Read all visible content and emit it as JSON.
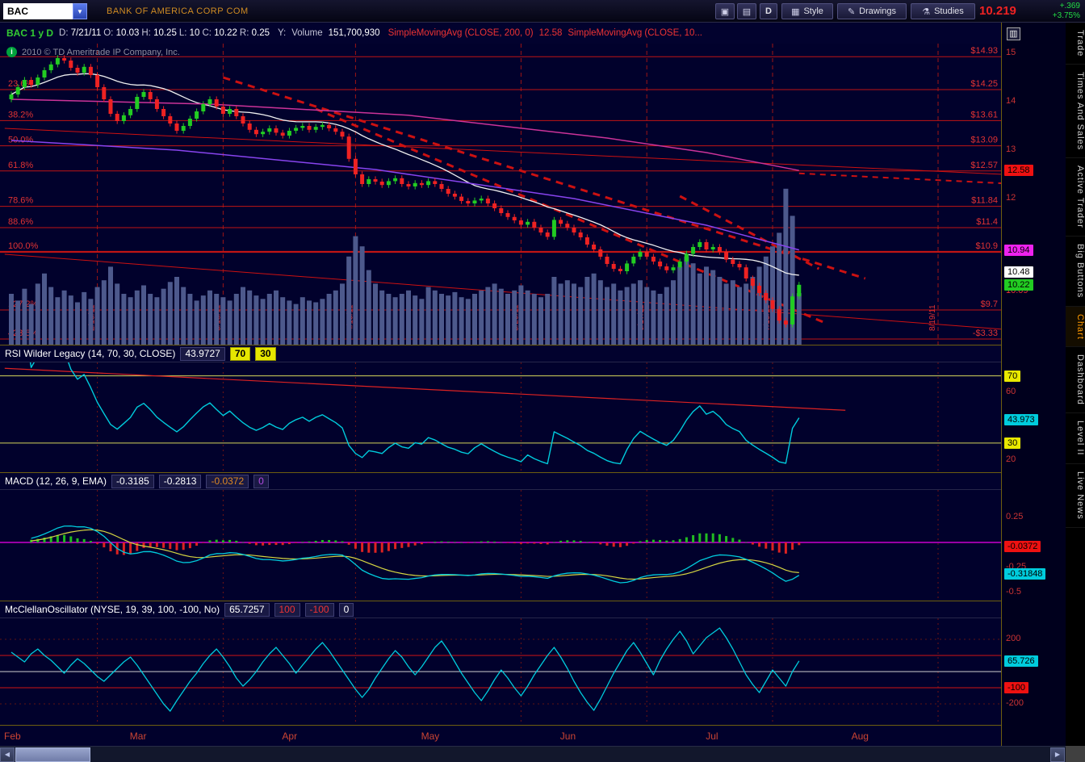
{
  "topbar": {
    "symbol": "BAC",
    "company": "BANK OF AMERICA CORP COM",
    "period_button": "D",
    "style_label": "Style",
    "drawings_label": "Drawings",
    "studies_label": "Studies",
    "last_price": "10.219",
    "change": "+.369",
    "change_pct": "+3.75%"
  },
  "icons": {
    "dropdown": "▼",
    "camera": "▣",
    "grid": "▤",
    "style": "▦",
    "drawings": "✎",
    "studies": "⚗",
    "panel": "▥",
    "info": "i",
    "scroll_left": "◀",
    "scroll_right": "▶"
  },
  "infobar": {
    "symbol_period": "BAC 1 y D",
    "fields": [
      {
        "label": "D:",
        "value": "7/21/11"
      },
      {
        "label": "O:",
        "value": "10.03"
      },
      {
        "label": "H:",
        "value": "10.25"
      },
      {
        "label": "L:",
        "value": "10"
      },
      {
        "label": "C:",
        "value": "10.22"
      },
      {
        "label": "R:",
        "value": "0.25"
      }
    ],
    "y_label": "Y:",
    "volume_label": "Volume",
    "volume_value": "151,700,930",
    "sma200_label": "SimpleMovingAvg (CLOSE, 200, 0)",
    "sma200_value": "12.58",
    "sma2_label": "SimpleMovingAvg (CLOSE, 10..."
  },
  "watermark": "2010 © TD Ameritrade IP Company, Inc.",
  "sidebar": {
    "tabs": [
      {
        "label": "Trade",
        "active": false
      },
      {
        "label": "Times And Sales",
        "active": false
      },
      {
        "label": "Active Trader",
        "active": false
      },
      {
        "label": "Big Buttons",
        "active": false
      },
      {
        "label": "Chart",
        "active": true
      },
      {
        "label": "Dashboard",
        "active": false
      },
      {
        "label": "Level II",
        "active": false
      },
      {
        "label": "Live News",
        "active": false
      }
    ]
  },
  "time_axis": {
    "months": [
      {
        "label": "Feb",
        "i": 0
      },
      {
        "label": "Mar",
        "i": 19
      },
      {
        "label": "Apr",
        "i": 42
      },
      {
        "label": "May",
        "i": 63
      },
      {
        "label": "Jun",
        "i": 84
      },
      {
        "label": "Jul",
        "i": 106
      },
      {
        "label": "Aug",
        "i": 128
      }
    ]
  },
  "chart_data": [
    {
      "type": "candlestick",
      "name": "price",
      "symbol": "BAC",
      "timeframe": "1 y D",
      "ylim": [
        8.98,
        15.2
      ],
      "last_bar": {
        "date": "7/21/11",
        "open": 10.03,
        "high": 10.25,
        "low": 10,
        "close": 10.22,
        "range": 0.25,
        "volume": "151,700,930"
      },
      "closes": [
        14.15,
        14.3,
        14.45,
        14.35,
        14.5,
        14.65,
        14.77,
        14.9,
        14.85,
        14.7,
        14.6,
        14.72,
        14.55,
        14.3,
        14.05,
        13.75,
        13.6,
        13.72,
        13.85,
        14.1,
        14.2,
        14.05,
        13.85,
        13.7,
        13.55,
        13.4,
        13.5,
        13.65,
        13.8,
        13.95,
        14.05,
        13.9,
        13.75,
        13.85,
        13.7,
        13.55,
        13.42,
        13.33,
        13.38,
        13.45,
        13.36,
        13.3,
        13.4,
        13.46,
        13.5,
        13.42,
        13.48,
        13.52,
        13.45,
        13.38,
        13.28,
        12.82,
        12.5,
        12.3,
        12.4,
        12.35,
        12.28,
        12.36,
        12.42,
        12.3,
        12.25,
        12.32,
        12.28,
        12.36,
        12.3,
        12.2,
        12.1,
        12.04,
        11.95,
        11.9,
        11.96,
        12.0,
        11.9,
        11.8,
        11.7,
        11.62,
        11.55,
        11.46,
        11.52,
        11.4,
        11.3,
        11.21,
        11.56,
        11.48,
        11.4,
        11.3,
        11.2,
        11.05,
        10.95,
        10.8,
        10.65,
        10.55,
        10.5,
        10.66,
        10.8,
        10.9,
        10.8,
        10.7,
        10.6,
        10.52,
        10.58,
        10.7,
        10.86,
        11.0,
        11.1,
        10.95,
        11.0,
        10.9,
        10.74,
        10.65,
        10.58,
        10.35,
        10.2,
        10.05,
        9.9,
        9.72,
        9.48,
        9.4,
        9.98,
        10.22
      ],
      "volumes_millions": [
        150,
        130,
        165,
        120,
        180,
        210,
        170,
        140,
        160,
        145,
        125,
        155,
        135,
        170,
        190,
        230,
        180,
        150,
        140,
        160,
        175,
        150,
        140,
        165,
        185,
        200,
        170,
        150,
        130,
        145,
        160,
        150,
        140,
        130,
        150,
        170,
        160,
        145,
        135,
        150,
        160,
        140,
        130,
        120,
        140,
        130,
        125,
        135,
        150,
        160,
        180,
        260,
        320,
        290,
        220,
        180,
        160,
        150,
        140,
        150,
        160,
        145,
        135,
        170,
        160,
        150,
        145,
        155,
        140,
        135,
        150,
        160,
        170,
        180,
        165,
        150,
        160,
        175,
        160,
        150,
        140,
        150,
        200,
        180,
        190,
        180,
        170,
        200,
        210,
        190,
        170,
        180,
        160,
        170,
        180,
        190,
        170,
        160,
        150,
        170,
        190,
        230,
        260,
        240,
        210,
        230,
        220,
        200,
        180,
        190,
        170,
        180,
        200,
        230,
        260,
        290,
        330,
        460,
        380,
        152
      ],
      "overlays": {
        "sma_white_period": 20,
        "sma200": {
          "color": "#cc3399",
          "last_value": 12.58,
          "points": [
            [
              0,
              14.05
            ],
            [
              30,
              13.95
            ],
            [
              60,
              13.72
            ],
            [
              90,
              13.25
            ],
            [
              105,
              12.95
            ],
            [
              119,
              12.58
            ]
          ]
        },
        "violet_ma": {
          "color": "#8844ee",
          "points": [
            [
              0,
              13.2
            ],
            [
              25,
              13.0
            ],
            [
              55,
              12.6
            ],
            [
              85,
              12.0
            ],
            [
              105,
              11.45
            ],
            [
              119,
              10.94
            ]
          ]
        }
      },
      "fib_levels": [
        {
          "pct": "",
          "price": 14.93,
          "label": "$14.93"
        },
        {
          "pct": "23.6%",
          "price": 14.25,
          "label": "$14.25"
        },
        {
          "pct": "38.2%",
          "price": 13.61,
          "label": "$13.61"
        },
        {
          "pct": "50.0%",
          "price": 13.09,
          "label": "$13.09"
        },
        {
          "pct": "61.8%",
          "price": 12.57,
          "label": "$12.57"
        },
        {
          "pct": "78.6%",
          "price": 11.84,
          "label": "$11.84"
        },
        {
          "pct": "88.6%",
          "price": 11.4,
          "label": "$11.4"
        },
        {
          "pct": "100.0%",
          "price": 10.9,
          "label": "$10.9",
          "bold": true
        },
        {
          "pct": "127.2%",
          "price": 9.7,
          "label": "$9.7"
        },
        {
          "pct": "423.6%",
          "price": null,
          "label": "-$3.33",
          "pinned_bottom": true
        }
      ],
      "trendlines": [
        {
          "i1": -1,
          "p1": 13.45,
          "i2": 150,
          "p2": 12.5,
          "width": 1,
          "dash": null
        },
        {
          "i1": -1,
          "p1": 10.85,
          "i2": 150,
          "p2": 9.3,
          "width": 1,
          "dash": null
        },
        {
          "i1": 32,
          "p1": 14.5,
          "i2": 129,
          "p2": 10.35,
          "width": 3,
          "dash": "9,7"
        },
        {
          "i1": 46,
          "p1": 13.85,
          "i2": 123,
          "p2": 9.43,
          "width": 3,
          "dash": "9,7"
        },
        {
          "i1": 101,
          "p1": 12.05,
          "i2": 122,
          "p2": 10.55,
          "width": 3,
          "dash": "9,7"
        },
        {
          "i1": 119,
          "p1": 12.52,
          "i2": 152,
          "p2": 12.3,
          "width": 2,
          "dash": "7,6"
        }
      ],
      "date_lines": [
        {
          "label": "2/18/11",
          "i": 13
        },
        {
          "label": "3/18/11",
          "i": 32
        },
        {
          "label": "4/15/11",
          "i": 52
        },
        {
          "label": "5/20/11",
          "i": 77
        },
        {
          "label": "6/17/11",
          "i": 96
        },
        {
          "label": "7/15/11",
          "i": 115
        },
        {
          "label": "8/19/11",
          "i": 140
        }
      ],
      "axis": {
        "ticks": [
          {
            "text": "15",
            "p": 15
          },
          {
            "text": "14",
            "p": 14
          },
          {
            "text": "13",
            "p": 13
          },
          {
            "text": "12",
            "p": 12
          }
        ],
        "badges": [
          {
            "text": "12.58",
            "p": 12.58,
            "bg": "#ee1111"
          },
          {
            "text": "10.94",
            "p": 10.94,
            "bg": "#ee22ee"
          },
          {
            "text": "10.48",
            "p": 10.48,
            "bg": "#ffffff"
          },
          {
            "text": "10.22",
            "p": 10.22,
            "bg": "#22cc22"
          }
        ],
        "texts": [
          {
            "text": "10.09",
            "p": 10.09,
            "color": "#ee3333"
          }
        ]
      }
    },
    {
      "type": "line",
      "title": "RSI Wilder Legacy (14, 70, 30, CLOSE)",
      "value": "43.9727",
      "ob_label": "70",
      "os_label": "30",
      "period": 14,
      "computed_from": "closes",
      "overbought": 70,
      "oversold": 30,
      "ylim": [
        12.6,
        78
      ],
      "trendline": {
        "i1": -1,
        "v1": 74.5,
        "i2": 126,
        "v2": 49.5
      },
      "axis": {
        "badges": [
          {
            "text": "70",
            "v": 70,
            "bg": "#e8e800"
          },
          {
            "text": "43.973",
            "v": 43.97,
            "bg": "#00ccdd"
          },
          {
            "text": "30",
            "v": 30,
            "bg": "#e8e800"
          }
        ],
        "texts": [
          {
            "text": "60",
            "v": 60,
            "color": "#cc3333"
          },
          {
            "text": "20",
            "v": 20,
            "color": "#cc3333"
          }
        ]
      }
    },
    {
      "type": "macd",
      "title": "MACD (12, 26, 9, EMA)",
      "values": [
        {
          "text": "-0.3185",
          "color": "#ffffff"
        },
        {
          "text": "-0.2813",
          "color": "#ffffff"
        },
        {
          "text": "-0.0372",
          "color": "#dd8822"
        },
        {
          "text": "0",
          "color": "#b24ae0"
        }
      ],
      "fast": 12,
      "slow": 26,
      "signal": 9,
      "ylim": [
        -0.58,
        0.52
      ],
      "axis": {
        "badges": [
          {
            "text": "-0.0372",
            "m": -0.037,
            "bg": "#ee1111"
          },
          {
            "text": "-0.31848",
            "m": -0.3185,
            "bg": "#00ccdd"
          }
        ],
        "texts": [
          {
            "text": "0.25",
            "m": 0.25,
            "color": "#cc3333"
          },
          {
            "text": "-0.25",
            "m": -0.25,
            "color": "#cc3333"
          },
          {
            "text": "-0.5",
            "m": -0.5,
            "color": "#cc3333"
          }
        ]
      }
    },
    {
      "type": "line",
      "title": "McClellanOscillator (NYSE, 19, 39, 100, -100, No)",
      "value": "65.7257",
      "header_extra": [
        {
          "text": "100",
          "color": "#ee3333"
        },
        {
          "text": "-100",
          "color": "#ee3333"
        },
        {
          "text": "0",
          "color": "#ffffff"
        }
      ],
      "upper": 100,
      "lower": -100,
      "ylim": [
        -330,
        330
      ],
      "values": [
        120,
        90,
        60,
        110,
        140,
        100,
        70,
        30,
        -10,
        40,
        80,
        50,
        10,
        -30,
        -60,
        -20,
        20,
        60,
        90,
        40,
        -20,
        -80,
        -140,
        -200,
        -245,
        -180,
        -120,
        -60,
        -10,
        50,
        100,
        140,
        90,
        30,
        -40,
        -90,
        -50,
        0,
        60,
        110,
        150,
        100,
        50,
        -10,
        40,
        90,
        140,
        180,
        130,
        70,
        10,
        -50,
        -110,
        -160,
        -110,
        -40,
        20,
        80,
        130,
        90,
        30,
        -20,
        30,
        90,
        150,
        190,
        130,
        60,
        -10,
        -70,
        -130,
        -180,
        -120,
        -50,
        10,
        -40,
        -100,
        -150,
        -90,
        -20,
        40,
        100,
        150,
        90,
        20,
        -60,
        -130,
        -190,
        -240,
        -170,
        -90,
        -10,
        60,
        130,
        180,
        120,
        50,
        -20,
        70,
        140,
        200,
        250,
        190,
        110,
        160,
        210,
        240,
        270,
        210,
        140,
        60,
        -20,
        -80,
        -130,
        -60,
        10,
        -40,
        -90,
        0,
        66
      ],
      "axis": {
        "badges": [
          {
            "text": "65.726",
            "v": 65.7,
            "bg": "#00ccdd"
          },
          {
            "text": "-100",
            "v": -100,
            "bg": "#ee1111"
          }
        ],
        "texts": [
          {
            "text": "200",
            "v": 200,
            "color": "#cc3333"
          },
          {
            "text": "-200",
            "v": -200,
            "color": "#cc3333"
          }
        ]
      }
    }
  ]
}
